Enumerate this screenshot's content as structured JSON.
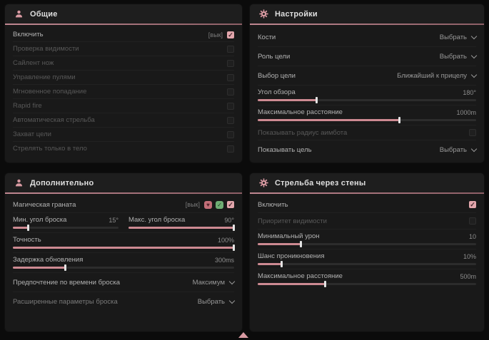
{
  "colors": {
    "accent_pink": "#d99aa2",
    "panel_bg": "#191919",
    "page_bg": "#0b0b0b",
    "checkbox_checked": "#e2a6ac",
    "slider_fill": "#cd8a92"
  },
  "panels": {
    "general": {
      "title": "Общие",
      "enable": {
        "label": "Включить",
        "tag": "[вык]",
        "checked": true
      },
      "toggles": [
        {
          "label": "Проверка видимости",
          "checked": false
        },
        {
          "label": "Сайлент нож",
          "checked": false
        },
        {
          "label": "Управление пулями",
          "checked": false
        },
        {
          "label": "Мгновенное попадание",
          "checked": false
        },
        {
          "label": "Rapid fire",
          "checked": false
        },
        {
          "label": "Автоматическая стрельба",
          "checked": false
        },
        {
          "label": "Захват цели",
          "checked": false
        },
        {
          "label": "Стрелять только в тело",
          "checked": false
        }
      ]
    },
    "settings": {
      "title": "Настройки",
      "dropdowns_top": [
        {
          "label": "Кости",
          "value": "Выбрать"
        },
        {
          "label": "Роль цели",
          "value": "Выбрать"
        },
        {
          "label": "Выбор цели",
          "value": "Ближайший к прицелу"
        }
      ],
      "sliders": [
        {
          "label": "Угол обзора",
          "value": "180°",
          "fill_pct": 27
        },
        {
          "label": "Максимальное расстояние",
          "value": "1000m",
          "fill_pct": 65
        }
      ],
      "show_radius": {
        "label": "Показывать радиус аимбота",
        "checked": false
      },
      "show_target": {
        "label": "Показывать цель",
        "value": "Выбрать"
      }
    },
    "additional": {
      "title": "Дополнительно",
      "magic_grenade": {
        "label": "Магическая граната",
        "tag": "[вык]",
        "checked": true,
        "icons": [
          {
            "name": "heart-icon",
            "glyph": "♥"
          },
          {
            "name": "shield-check-icon",
            "glyph": "✓"
          }
        ]
      },
      "min_angle": {
        "label": "Мин. угол броска",
        "value": "15°",
        "fill_pct": 15
      },
      "max_angle": {
        "label": "Макс. угол броска",
        "value": "90°",
        "fill_pct": 100
      },
      "accuracy": {
        "label": "Точность",
        "value": "100%",
        "fill_pct": 100
      },
      "delay": {
        "label": "Задержка обновления",
        "value": "300ms",
        "fill_pct": 24
      },
      "time_pref": {
        "label": "Предпочтение по времени броска",
        "value": "Максимум"
      },
      "advanced": {
        "label": "Расширенные параметры броска",
        "value": "Выбрать"
      }
    },
    "walls": {
      "title": "Стрельба через стены",
      "enable": {
        "label": "Включить",
        "checked": true
      },
      "visibility": {
        "label": "Приоритет видимости",
        "checked": false
      },
      "sliders": [
        {
          "label": "Минимальный урон",
          "value": "10",
          "fill_pct": 20
        },
        {
          "label": "Шанс проникновения",
          "value": "10%",
          "fill_pct": 11
        },
        {
          "label": "Максимальное расстояние",
          "value": "500m",
          "fill_pct": 31
        }
      ]
    }
  }
}
